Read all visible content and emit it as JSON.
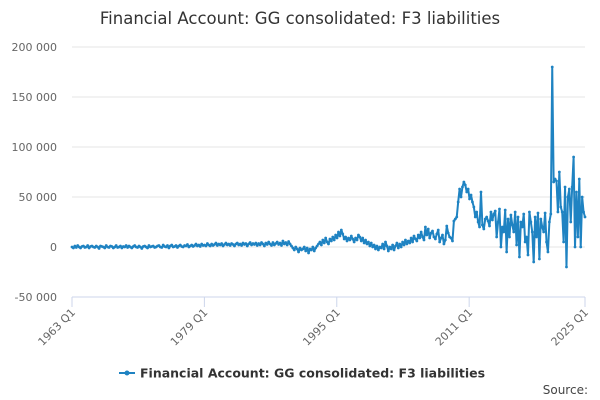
{
  "chart_data": {
    "type": "line",
    "title": "Financial Account: GG consolidated: F3 liabilities",
    "xlabel": "",
    "ylabel": "",
    "x_start": "1963 Q1",
    "x_end": "2025 Q1",
    "x_tick_labels": [
      "1963 Q1",
      "1979 Q1",
      "1995 Q1",
      "2011 Q1",
      "2025 Q1"
    ],
    "y_tick_labels": [
      "-50 000",
      "0",
      "50 000",
      "100 000",
      "150 000",
      "200 000"
    ],
    "y_ticks": [
      -50000,
      0,
      50000,
      100000,
      150000,
      200000
    ],
    "ylim": [
      -50000,
      200000
    ],
    "grid": true,
    "legend_position": "bottom",
    "series": [
      {
        "name": "Financial Account: GG consolidated: F3 liabilities",
        "color": "#1f83c2",
        "values": [
          0,
          -1000,
          1000,
          -500,
          1500,
          0,
          -1000,
          500,
          1000,
          -500,
          0,
          1500,
          -1000,
          500,
          1000,
          0,
          -500,
          1000,
          0,
          -1500,
          1000,
          500,
          0,
          -1000,
          1500,
          0,
          -500,
          1000,
          500,
          -1000,
          0,
          1500,
          -500,
          0,
          1000,
          -1000,
          500,
          0,
          1500,
          -500,
          1000,
          0,
          -1000,
          500,
          1500,
          0,
          -500,
          1000,
          0,
          -1500,
          500,
          1000,
          0,
          -1000,
          1500,
          0,
          500,
          1000,
          -500,
          0,
          1000,
          1500,
          0,
          -500,
          2000,
          500,
          0,
          1500,
          -1000,
          1000,
          2000,
          0,
          500,
          1500,
          -500,
          1000,
          2000,
          500,
          0,
          1500,
          1000,
          2500,
          0,
          1000,
          2000,
          500,
          1500,
          3000,
          1000,
          2000,
          500,
          3000,
          1500,
          2000,
          1000,
          3500,
          2000,
          1000,
          3000,
          1500,
          2500,
          4000,
          1500,
          3000,
          2000,
          3500,
          1000,
          2500,
          4000,
          2000,
          3000,
          1500,
          3500,
          2500,
          1000,
          3000,
          4000,
          2000,
          3000,
          1500,
          4000,
          2500,
          3500,
          1000,
          3000,
          4500,
          2000,
          3500,
          2500,
          4000,
          1500,
          3500,
          2000,
          4500,
          3000,
          1000,
          4000,
          2500,
          5000,
          3000,
          1500,
          4500,
          2000,
          3500,
          5000,
          2500,
          4000,
          1500,
          6000,
          3000,
          4500,
          2000,
          5500,
          3000,
          1000,
          -1000,
          -3000,
          0,
          -2000,
          -5000,
          -1000,
          -3000,
          -2000,
          0,
          -4000,
          -1000,
          -6000,
          -2000,
          -3000,
          0,
          -4000,
          -1000,
          1000,
          3000,
          5000,
          2000,
          7000,
          4000,
          9000,
          5000,
          3000,
          8000,
          6000,
          10000,
          7000,
          12000,
          9000,
          15000,
          11000,
          17000,
          13000,
          8000,
          10000,
          6000,
          9000,
          7000,
          11000,
          8000,
          5000,
          9000,
          7000,
          12000,
          10000,
          6000,
          9000,
          4000,
          7000,
          3000,
          5000,
          1000,
          4000,
          0,
          2000,
          -2000,
          1000,
          -3000,
          0,
          -1000,
          3000,
          -2000,
          5000,
          1000,
          -4000,
          0,
          -2000,
          2000,
          -3000,
          1000,
          4000,
          -1000,
          3000,
          0,
          5000,
          2000,
          7000,
          3000,
          6000,
          4000,
          9000,
          5000,
          11000,
          8000,
          6000,
          12000,
          9000,
          15000,
          10000,
          7000,
          20000,
          12000,
          18000,
          9000,
          14000,
          16000,
          10000,
          8000,
          13000,
          17000,
          5000,
          9000,
          12000,
          3000,
          7000,
          21000,
          14000,
          10000,
          9000,
          6000,
          26000,
          28000,
          30000,
          45000,
          58000,
          50000,
          60000,
          65000,
          62000,
          55000,
          58000,
          48000,
          52000,
          45000,
          40000,
          30000,
          35000,
          25000,
          20000,
          55000,
          22000,
          18000,
          28000,
          30000,
          26000,
          21000,
          35000,
          27000,
          33000,
          36000,
          10000,
          25000,
          38000,
          0,
          20000,
          15000,
          37000,
          -5000,
          28000,
          10000,
          32000,
          22000,
          15000,
          35000,
          2000,
          30000,
          -10000,
          25000,
          20000,
          33000,
          5000,
          10000,
          -8000,
          35000,
          25000,
          15000,
          -15000,
          30000,
          10000,
          34000,
          -12000,
          28000,
          20000,
          15000,
          34000,
          5000,
          -5000,
          25000,
          33000,
          180000,
          65000,
          68000,
          66000,
          35000,
          75000,
          40000,
          35000,
          5000,
          60000,
          -20000,
          50000,
          58000,
          25000,
          60000,
          90000,
          0,
          55000,
          10000,
          68000,
          0,
          50000,
          35000,
          30000
        ]
      }
    ],
    "source_label": "Source:"
  }
}
